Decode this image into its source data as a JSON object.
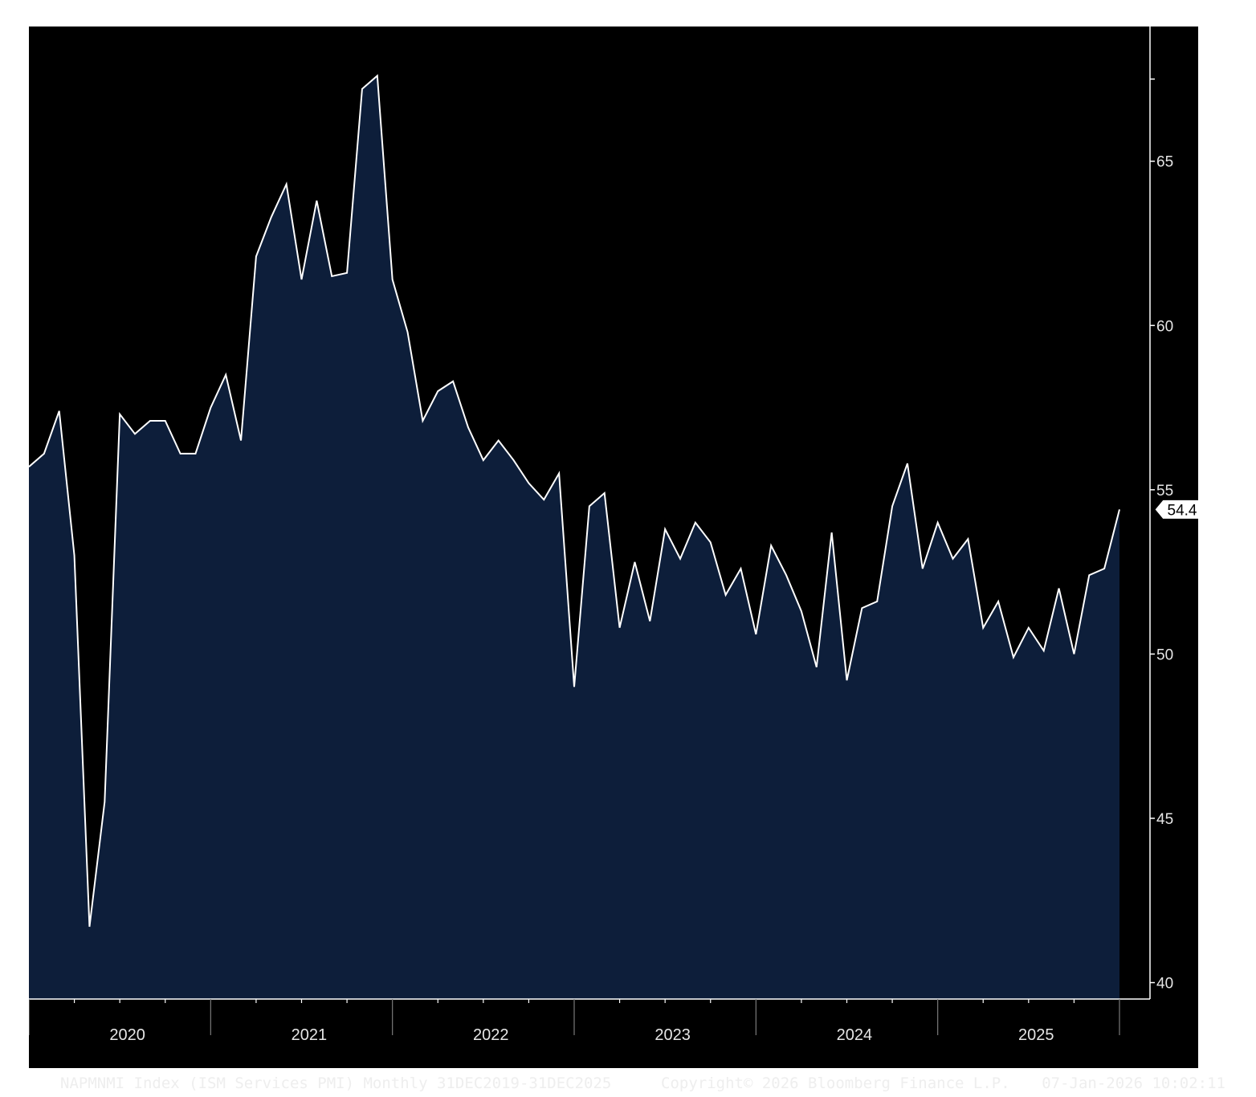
{
  "colors": {
    "background": "#000000",
    "area_fill": "#0d1e3a",
    "line": "#ffffff",
    "axis": "#ffffff",
    "text": "#e6e6e6"
  },
  "footer": {
    "left": "NAPMNMI Index (ISM Services PMI) Monthly 31DEC2019-31DEC2025",
    "center": "Copyright© 2026 Bloomberg Finance L.P.",
    "right": "07-Jan-2026 10:02:11"
  },
  "chart_data": {
    "type": "area",
    "title": "",
    "xlabel": "",
    "ylabel": "",
    "ylim": [
      39.5,
      69.1
    ],
    "xlim": [
      "2019-12",
      "2025-12"
    ],
    "grid": false,
    "y_axis_position": "right",
    "y_ticks": [
      40,
      45,
      50,
      55,
      60,
      65
    ],
    "x_year_labels": [
      "2020",
      "2021",
      "2022",
      "2023",
      "2024",
      "2025"
    ],
    "last_value_label": "54.4",
    "series": [
      {
        "x": [
          "2019-12",
          "2020-01",
          "2020-02",
          "2020-03",
          "2020-04",
          "2020-05",
          "2020-06",
          "2020-07",
          "2020-08",
          "2020-09",
          "2020-10",
          "2020-11",
          "2020-12",
          "2021-01",
          "2021-02",
          "2021-03",
          "2021-04",
          "2021-05",
          "2021-06",
          "2021-07",
          "2021-08",
          "2021-09",
          "2021-10",
          "2021-11",
          "2021-12",
          "2022-01",
          "2022-02",
          "2022-03",
          "2022-04",
          "2022-05",
          "2022-06",
          "2022-07",
          "2022-08",
          "2022-09",
          "2022-10",
          "2022-11",
          "2022-12",
          "2023-01",
          "2023-02",
          "2023-03",
          "2023-04",
          "2023-05",
          "2023-06",
          "2023-07",
          "2023-08",
          "2023-09",
          "2023-10",
          "2023-11",
          "2023-12",
          "2024-01",
          "2024-02",
          "2024-03",
          "2024-04",
          "2024-05",
          "2024-06",
          "2024-07",
          "2024-08",
          "2024-09",
          "2024-10",
          "2024-11",
          "2024-12",
          "2025-01",
          "2025-02",
          "2025-03",
          "2025-04",
          "2025-05",
          "2025-06",
          "2025-07",
          "2025-08",
          "2025-09",
          "2025-10",
          "2025-11",
          "2025-12"
        ],
        "values": [
          55.7,
          56.1,
          57.4,
          53.0,
          41.7,
          45.5,
          57.3,
          56.7,
          57.1,
          57.1,
          56.1,
          56.1,
          57.5,
          58.5,
          56.5,
          62.1,
          63.3,
          64.3,
          61.4,
          63.8,
          61.5,
          61.6,
          67.2,
          67.6,
          61.4,
          59.8,
          57.1,
          58.0,
          58.3,
          56.9,
          55.9,
          56.5,
          55.9,
          55.2,
          54.7,
          55.5,
          49.0,
          54.5,
          54.9,
          50.8,
          52.8,
          51.0,
          53.8,
          52.9,
          54.0,
          53.4,
          51.8,
          52.6,
          50.6,
          53.3,
          52.4,
          51.3,
          49.6,
          53.7,
          49.2,
          51.4,
          51.6,
          54.5,
          55.8,
          52.6,
          54.0,
          52.9,
          53.5,
          50.8,
          51.6,
          49.9,
          50.8,
          50.1,
          52.0,
          50.0,
          52.4,
          52.6,
          54.4
        ]
      }
    ]
  }
}
